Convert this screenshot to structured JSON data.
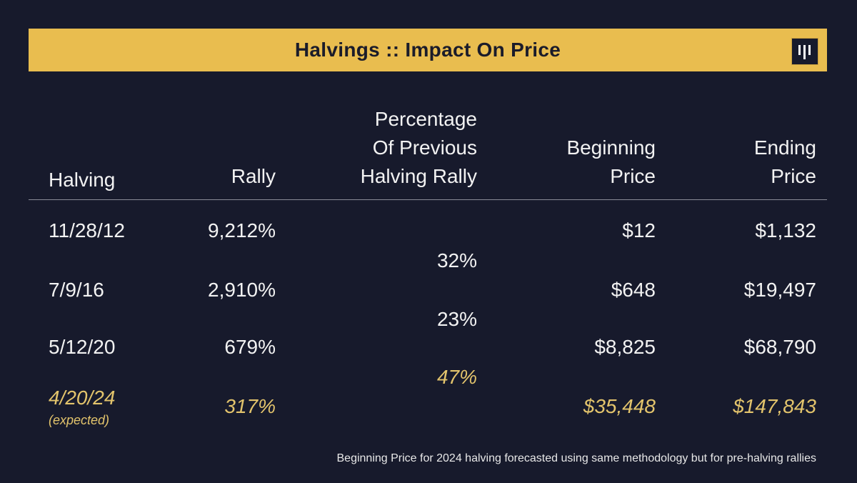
{
  "title": "Halvings :: Impact On Price",
  "colors": {
    "background": "#171a2c",
    "banner": "#e9bd4f",
    "forecast": "#e3c46c",
    "text": "#f2f2f2"
  },
  "logo_icon": "pantera-logo-icon",
  "chart_data": {
    "type": "table",
    "columns": [
      "Halving",
      "Rally",
      "Percentage Of Previous Halving Rally",
      "Beginning Price",
      "Ending Price"
    ],
    "header_lines": {
      "halving": [
        "Halving"
      ],
      "rally": [
        "Rally"
      ],
      "pct": [
        "Percentage",
        "Of Previous",
        "Halving Rally"
      ],
      "begin": [
        "Beginning",
        "Price"
      ],
      "end": [
        "Ending",
        "Price"
      ]
    },
    "rows": [
      {
        "halving": "11/28/12",
        "rally": "9,212%",
        "begin": "$12",
        "end": "$1,132"
      },
      {
        "halving": "7/9/16",
        "rally": "2,910%",
        "begin": "$648",
        "end": "$19,497"
      },
      {
        "halving": "5/12/20",
        "rally": "679%",
        "begin": "$8,825",
        "end": "$68,790"
      },
      {
        "halving": "4/20/24",
        "note": "(expected)",
        "rally": "317%",
        "begin": "$35,448",
        "end": "$147,843",
        "forecast": true
      }
    ],
    "pct_of_previous": [
      "32%",
      "23%",
      "47%"
    ]
  },
  "footnote": "Beginning Price for 2024 halving forecasted using same methodology but for pre-halving rallies"
}
